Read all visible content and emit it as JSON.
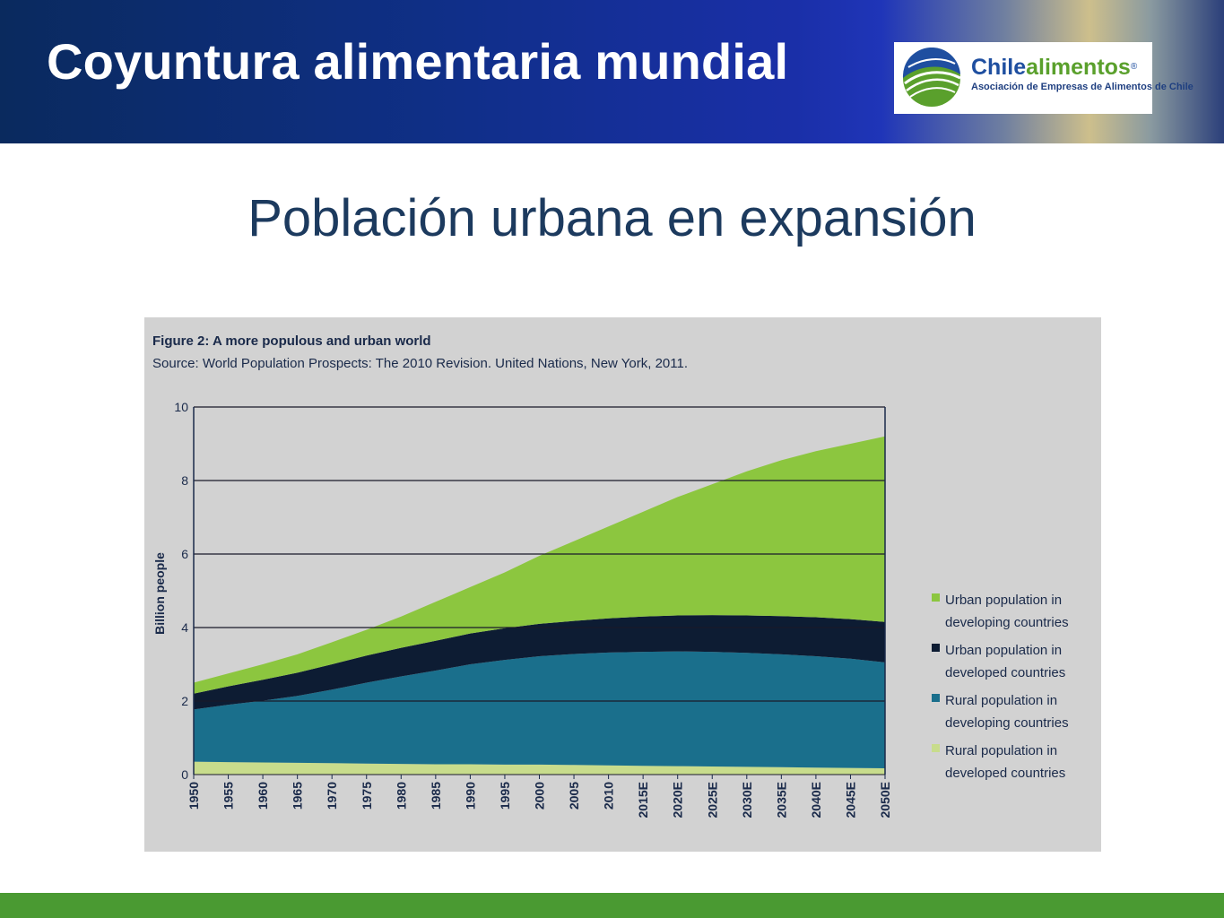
{
  "header": {
    "title": "Coyuntura alimentaria mundial",
    "logo": {
      "name_part1": "Chile",
      "name_part2": "alimentos",
      "registered": "®",
      "tagline": "Asociación de Empresas de Alimentos de Chile"
    }
  },
  "slide": {
    "subtitle": "Población urbana en expansión"
  },
  "colors": {
    "urban_developing": "#8cc63f",
    "urban_developed": "#0d1c33",
    "rural_developing": "#1a6f8c",
    "rural_developed": "#c8dc8c",
    "bottom_bar": "#4a9a32"
  },
  "chart_data": {
    "type": "area",
    "stacked": true,
    "title": "Figure 2: A more populous and urban world",
    "source": "Source: World Population Prospects: The 2010 Revision. United Nations, New York, 2011.",
    "ylabel": "Billion people",
    "ylim": [
      0,
      10
    ],
    "yticks": [
      "0",
      "2",
      "4",
      "6",
      "8",
      "10"
    ],
    "grid": true,
    "legend_position": "right",
    "x": [
      "1950",
      "1955",
      "1960",
      "1965",
      "1970",
      "1975",
      "1980",
      "1985",
      "1990",
      "1995",
      "2000",
      "2005",
      "2010",
      "2015E",
      "2020E",
      "2025E",
      "2030E",
      "2035E",
      "2040E",
      "2045E",
      "2050E"
    ],
    "series": [
      {
        "name": "Rural population in developed countries",
        "color_key": "rural_developed",
        "values": [
          0.35,
          0.34,
          0.33,
          0.32,
          0.31,
          0.3,
          0.29,
          0.28,
          0.28,
          0.27,
          0.27,
          0.26,
          0.25,
          0.24,
          0.23,
          0.22,
          0.21,
          0.2,
          0.19,
          0.18,
          0.17
        ]
      },
      {
        "name": "Rural population in developing countries",
        "color_key": "rural_developing",
        "values": [
          1.42,
          1.56,
          1.68,
          1.82,
          2.0,
          2.2,
          2.38,
          2.55,
          2.72,
          2.85,
          2.95,
          3.02,
          3.07,
          3.1,
          3.12,
          3.12,
          3.1,
          3.07,
          3.03,
          2.97,
          2.88
        ]
      },
      {
        "name": "Urban population in developed countries",
        "color_key": "urban_developed",
        "values": [
          0.43,
          0.5,
          0.57,
          0.63,
          0.69,
          0.74,
          0.78,
          0.81,
          0.84,
          0.86,
          0.88,
          0.9,
          0.93,
          0.96,
          0.98,
          1.0,
          1.02,
          1.04,
          1.06,
          1.08,
          1.1
        ]
      },
      {
        "name": "Urban population in developing countries",
        "color_key": "urban_developing",
        "values": [
          0.3,
          0.35,
          0.42,
          0.5,
          0.6,
          0.7,
          0.85,
          1.06,
          1.26,
          1.52,
          1.85,
          2.17,
          2.5,
          2.85,
          3.22,
          3.56,
          3.92,
          4.24,
          4.52,
          4.77,
          5.05
        ]
      }
    ]
  }
}
